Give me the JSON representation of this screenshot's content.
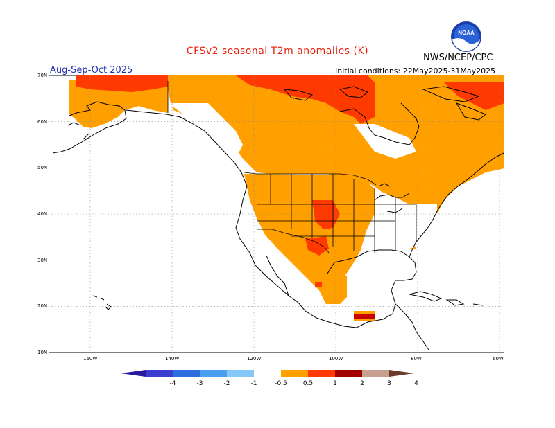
{
  "title": "CFSv2 seasonal T2m anomalies (K)",
  "agency": "NWS/NCEP/CPC",
  "logo_text": "NOAA",
  "period": "Aug-Sep-Oct 2025",
  "initial_conditions": "Initial conditions: 22May2025-31May2025",
  "colors": {
    "title": "#e8200c",
    "period": "#2030b0",
    "orange": "#ff9f00",
    "red": "#ff3a00",
    "darkred": "#c80000",
    "coast": "#000000"
  },
  "lat_labels": [
    "70N",
    "60N",
    "50N",
    "40N",
    "30N",
    "20N",
    "10N"
  ],
  "lon_labels": [
    "160W",
    "140W",
    "120W",
    "100W",
    "80W",
    "60W"
  ],
  "colorbar": {
    "labels": [
      "-4",
      "-3",
      "-2",
      "-1",
      "-0.5",
      "0.5",
      "1",
      "2",
      "3",
      "4"
    ],
    "colors": [
      "#2a1aa0",
      "#3b3fd0",
      "#2e6fe0",
      "#4aa0f0",
      "#86c8f8",
      "#ffffff",
      "#ff9f00",
      "#ff3a00",
      "#a00000",
      "#c8a090",
      "#6b3a2a"
    ]
  }
}
